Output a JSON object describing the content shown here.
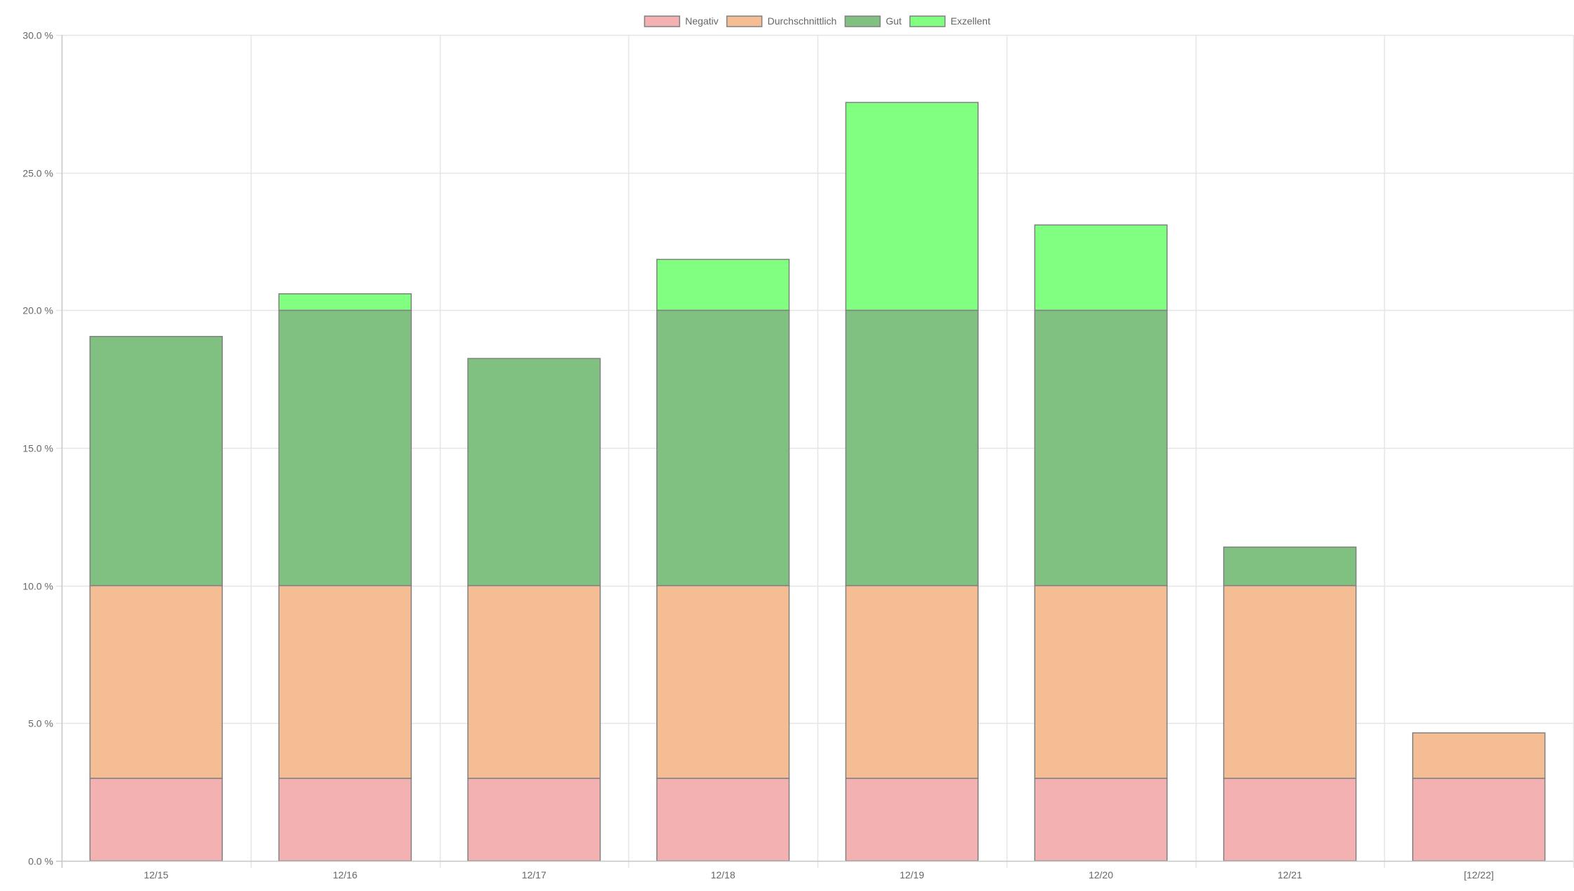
{
  "chart_data": {
    "type": "bar",
    "stacked": true,
    "categories": [
      "12/15",
      "12/16",
      "12/17",
      "12/18",
      "12/19",
      "12/20",
      "12/21",
      "[12/22]"
    ],
    "series": [
      {
        "name": "Negativ",
        "color": "#f4b1b1",
        "values": [
          3,
          3,
          3,
          3,
          3,
          3,
          3,
          3
        ]
      },
      {
        "name": "Durchschnittlich",
        "color": "#f5bd93",
        "values": [
          7,
          7,
          7,
          7,
          7,
          7,
          7,
          1.65
        ]
      },
      {
        "name": "Gut",
        "color": "#80c080",
        "values": [
          9.05,
          10,
          8.25,
          10,
          10,
          10,
          1.4,
          0
        ]
      },
      {
        "name": "Exzellent",
        "color": "#80ff80",
        "values": [
          0,
          0.6,
          0,
          1.85,
          7.55,
          3.1,
          0,
          0
        ]
      }
    ],
    "ylim": [
      0,
      30
    ],
    "yticks": [
      {
        "value": 0,
        "label": "0.0 %"
      },
      {
        "value": 5,
        "label": "5.0 %"
      },
      {
        "value": 10,
        "label": "10.0 %"
      },
      {
        "value": 15,
        "label": "15.0 %"
      },
      {
        "value": 20,
        "label": "20.0 %"
      },
      {
        "value": 25,
        "label": "25.0 %"
      },
      {
        "value": 30,
        "label": "30.0 %"
      }
    ],
    "grid": true,
    "legend": "top-center"
  }
}
